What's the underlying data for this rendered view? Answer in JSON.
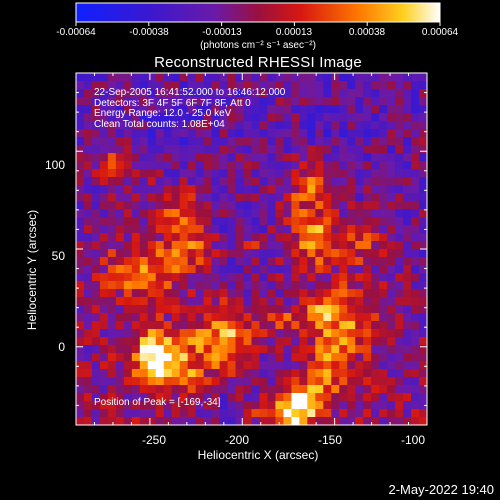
{
  "colorbar": {
    "ticks": [
      "-0.00064",
      "-0.00038",
      "-0.00013",
      "0.00013",
      "0.00038",
      "0.00064"
    ],
    "unit_label": "(photons cm⁻² s⁻¹ asec⁻²)"
  },
  "info_lines": [
    "22-Sep-2005 16:41:52.000 to 16:46:12.000",
    "Detectors: 3F 4F 5F 6F 7F 8F, Att 0",
    "Energy Range: 12.0 - 25.0 keV",
    "Clean     Total counts: 1.08E+04"
  ],
  "peak_text": "Position of Peak = [-169,-34]",
  "footer_date": "2-May-2022 19:40",
  "colors": {
    "background": "#000000",
    "axes": "#ffffff",
    "colormap": "rainbow-heat"
  },
  "chart_data": {
    "type": "heatmap",
    "title": "Reconstructed RHESSI Image",
    "xlabel": "Heliocentric X (arcsec)",
    "ylabel": "Heliocentric Y (arcsec)",
    "xlim": [
      -290,
      -100
    ],
    "ylim": [
      -40,
      140
    ],
    "x_ticks": [
      -250,
      -200,
      -150,
      -100
    ],
    "y_ticks": [
      0,
      50,
      100
    ],
    "value_range": [
      -0.00064,
      0.00064
    ],
    "peak_position": [
      -169,
      -34
    ]
  }
}
